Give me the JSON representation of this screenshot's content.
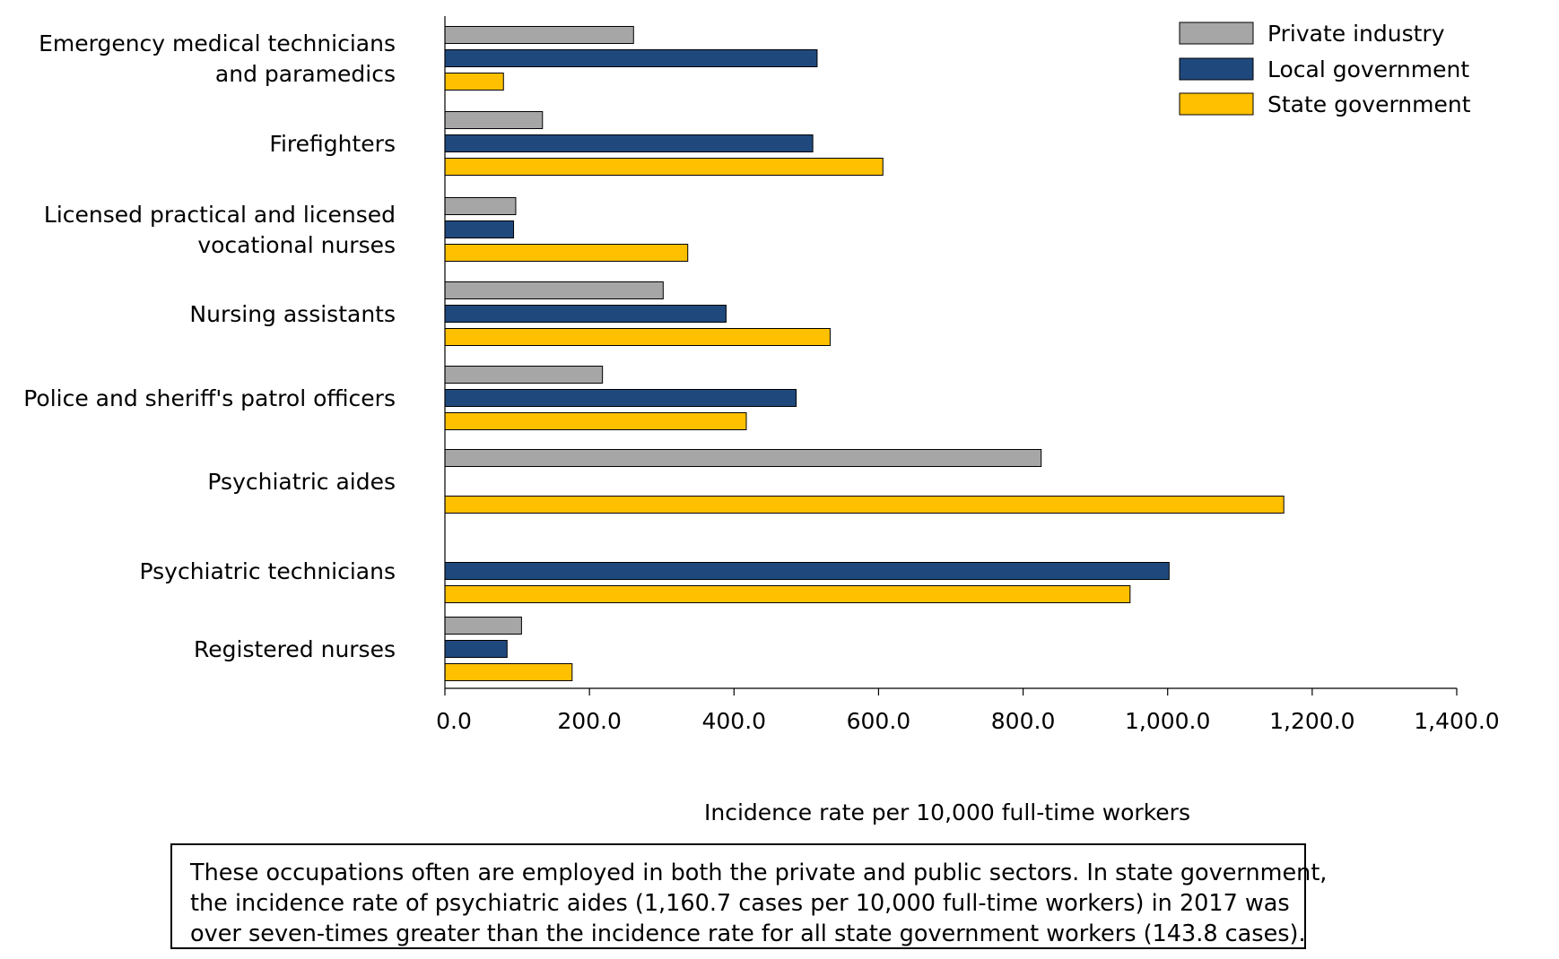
{
  "chart_data": {
    "type": "bar",
    "orientation": "horizontal",
    "categories": [
      [
        "Emergency medical technicians",
        "and paramedics"
      ],
      [
        "Firefighters"
      ],
      [
        "Licensed practical and licensed",
        "vocational nurses"
      ],
      [
        "Nursing assistants"
      ],
      [
        "Police and sheriff's patrol officers"
      ],
      [
        "Psychiatric aides"
      ],
      [
        "Psychiatric technicians"
      ],
      [
        "Registered nurses"
      ]
    ],
    "series": [
      {
        "name": "Private industry",
        "color": "#a6a6a6",
        "values": [
          261.0,
          135.0,
          98.0,
          302.0,
          218.0,
          825.0,
          null,
          106.0
        ]
      },
      {
        "name": "Local government",
        "color": "#1f497d",
        "values": [
          515.0,
          509.0,
          95.0,
          389.0,
          486.0,
          null,
          1002.0,
          86.0
        ]
      },
      {
        "name": "State government",
        "color": "#ffc000",
        "values": [
          81.0,
          606.0,
          336.0,
          533.0,
          417.0,
          1160.7,
          948.0,
          176.0
        ]
      }
    ],
    "xlabel": "Incidence rate per 10,000 full-time workers",
    "xlim": [
      0,
      1400
    ],
    "ticks": [
      0,
      200,
      400,
      600,
      800,
      1000,
      1200,
      1400
    ],
    "tick_labels": [
      "0.0",
      "200.0",
      "400.0",
      "600.0",
      "800.0",
      "1,000.0",
      "1,200.0",
      "1,400.0"
    ],
    "legend_position": "top-right",
    "grid": false
  },
  "note": {
    "lines": [
      "These occupations often are employed in both the private and public sectors. In state government,",
      "the incidence rate of psychiatric aides (1,160.7 cases per 10,000 full-time workers) in 2017 was",
      "over seven-times greater than the incidence rate for all state government workers (143.8 cases)."
    ]
  }
}
